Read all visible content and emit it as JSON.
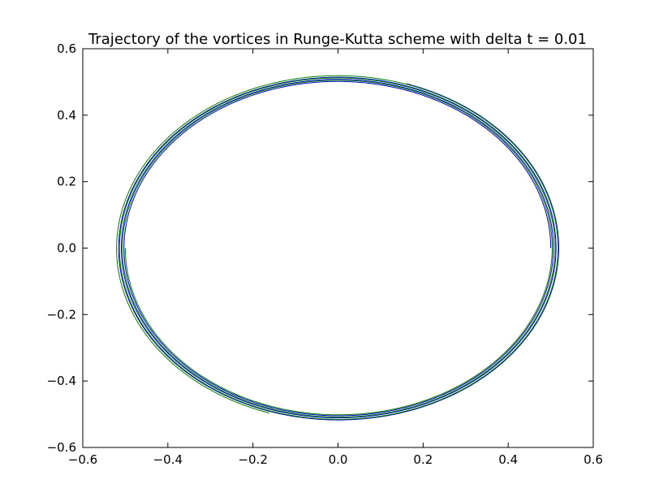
{
  "chart_data": {
    "type": "line",
    "title": "Trajectory of the vortices in Runge-Kutta scheme with delta t = 0.01",
    "xlabel": "",
    "ylabel": "",
    "xlim": [
      -0.6,
      0.6
    ],
    "ylim": [
      -0.6,
      0.6
    ],
    "xticks": [
      -0.6,
      -0.4,
      -0.2,
      0.0,
      0.2,
      0.4,
      0.6
    ],
    "yticks": [
      -0.6,
      -0.4,
      -0.2,
      0.0,
      0.2,
      0.4,
      0.6
    ],
    "xtick_labels": [
      "−0.6",
      "−0.4",
      "−0.2",
      "0.0",
      "0.2",
      "0.4",
      "0.6"
    ],
    "ytick_labels": [
      "−0.6",
      "−0.4",
      "−0.2",
      "0.0",
      "0.2",
      "0.4",
      "0.6"
    ],
    "grid": false,
    "series": [
      {
        "color": "#0000cc",
        "start": [
          0.5,
          0.0
        ],
        "r_start": 0.5,
        "r_end": 0.52,
        "turns": 3.2
      },
      {
        "color": "#008000",
        "start": [
          -0.5,
          0.0
        ],
        "r_start": 0.5,
        "r_end": 0.522,
        "turns": 3.2
      }
    ]
  }
}
